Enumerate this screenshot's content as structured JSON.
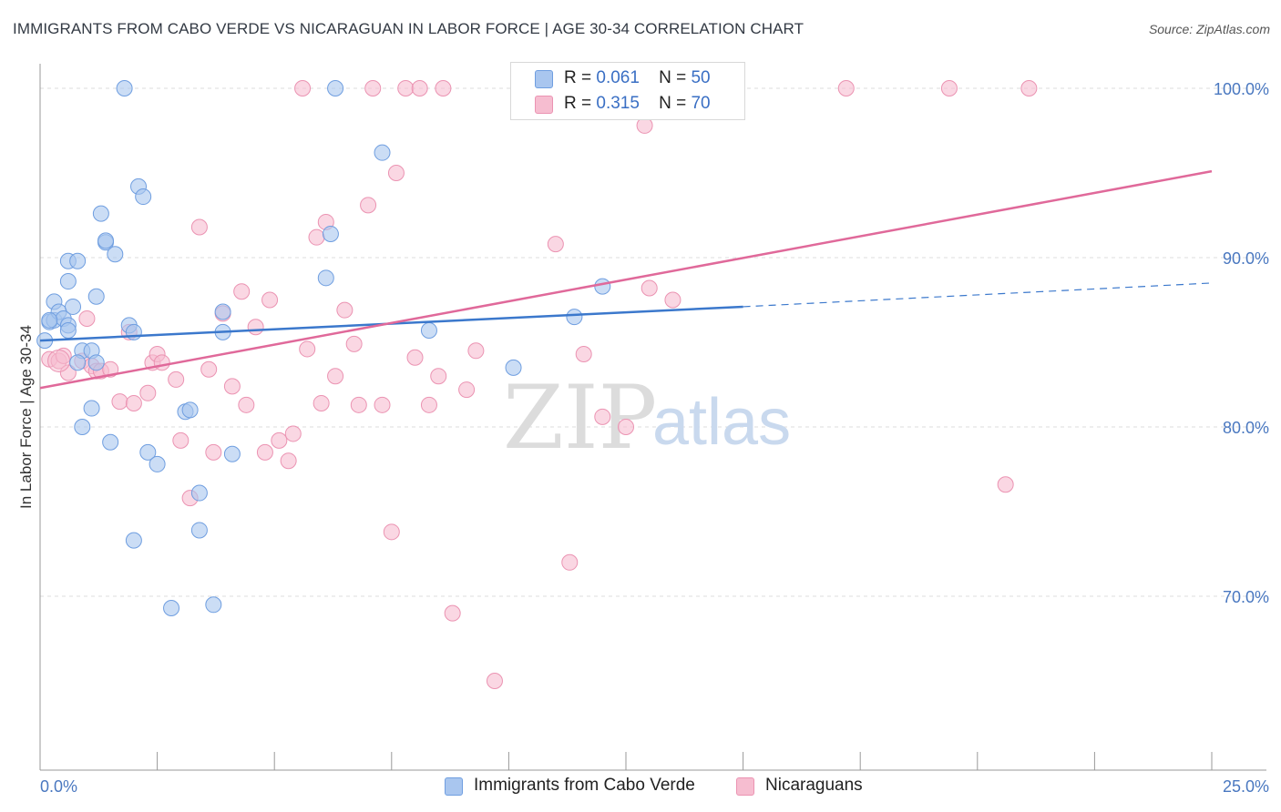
{
  "title": "IMMIGRANTS FROM CABO VERDE VS NICARAGUAN IN LABOR FORCE | AGE 30-34 CORRELATION CHART",
  "source": "Source: ZipAtlas.com",
  "watermark": {
    "zip": "ZIP",
    "atlas": "atlas"
  },
  "legend": {
    "r_label": "R =",
    "n_label": "N =",
    "rows": [
      {
        "r": "0.061",
        "n": "50"
      },
      {
        "r": "0.315",
        "n": "70"
      }
    ]
  },
  "chart_data": {
    "type": "scatter",
    "title": "IMMIGRANTS FROM CABO VERDE VS NICARAGUAN IN LABOR FORCE | AGE 30-34 CORRELATION CHART",
    "xlabel": "",
    "ylabel": "In Labor Force | Age 30-34",
    "xlim": [
      0,
      25
    ],
    "ylim": [
      60,
      101.5
    ],
    "x_tick_labels": [
      {
        "value": 0,
        "label": "0.0%"
      },
      {
        "value": 25,
        "label": "25.0%"
      }
    ],
    "y_tick_labels": [
      {
        "value": 100,
        "label": "100.0%"
      },
      {
        "value": 90,
        "label": "90.0%"
      },
      {
        "value": 80,
        "label": "80.0%"
      },
      {
        "value": 70,
        "label": "70.0%"
      }
    ],
    "colors": {
      "blue_fill": "#a9c6ef",
      "blue_stroke": "#6f9ee0",
      "blue_line": "#3b78cc",
      "pink_fill": "#f6bdd0",
      "pink_stroke": "#eb93b2",
      "pink_line": "#e0699a",
      "axis_label": "#4a78c0"
    },
    "series": [
      {
        "name": "Immigrants from Cabo Verde",
        "R": 0.061,
        "N": 50,
        "trend": {
          "x0": 0,
          "y0": 85.1,
          "x1": 15,
          "y1": 87.1,
          "dash_to_x": 25,
          "dash_to_y": 88.5
        },
        "points": [
          [
            0.1,
            85.1
          ],
          [
            0.2,
            86.2
          ],
          [
            0.3,
            86.3
          ],
          [
            0.3,
            87.4
          ],
          [
            0.4,
            86.8
          ],
          [
            0.5,
            86.4
          ],
          [
            0.6,
            86.0
          ],
          [
            0.6,
            85.7
          ],
          [
            0.6,
            88.6
          ],
          [
            0.6,
            89.8
          ],
          [
            0.8,
            89.8
          ],
          [
            0.7,
            87.1
          ],
          [
            0.9,
            84.5
          ],
          [
            0.8,
            83.8
          ],
          [
            0.9,
            80.0
          ],
          [
            1.1,
            84.5
          ],
          [
            1.1,
            81.1
          ],
          [
            1.2,
            87.7
          ],
          [
            1.2,
            83.8
          ],
          [
            1.3,
            92.6
          ],
          [
            1.4,
            90.9
          ],
          [
            1.4,
            91.0
          ],
          [
            1.5,
            79.1
          ],
          [
            1.6,
            90.2
          ],
          [
            1.8,
            100.0
          ],
          [
            1.9,
            86.0
          ],
          [
            2.0,
            85.6
          ],
          [
            2.0,
            73.3
          ],
          [
            2.1,
            94.2
          ],
          [
            2.2,
            93.6
          ],
          [
            2.3,
            78.5
          ],
          [
            2.5,
            77.8
          ],
          [
            2.8,
            69.3
          ],
          [
            3.1,
            80.9
          ],
          [
            3.2,
            81.0
          ],
          [
            3.4,
            76.1
          ],
          [
            3.4,
            73.9
          ],
          [
            3.7,
            69.5
          ],
          [
            3.9,
            85.6
          ],
          [
            3.9,
            86.8
          ],
          [
            4.1,
            78.4
          ],
          [
            6.3,
            100.0
          ],
          [
            6.2,
            91.4
          ],
          [
            6.1,
            88.8
          ],
          [
            7.3,
            96.2
          ],
          [
            8.3,
            85.7
          ],
          [
            10.1,
            83.5
          ],
          [
            11.4,
            86.5
          ],
          [
            12.0,
            88.3
          ],
          [
            0.2,
            86.3
          ]
        ]
      },
      {
        "name": "Nicaraguans",
        "R": 0.315,
        "N": 70,
        "trend": {
          "x0": 0,
          "y0": 82.3,
          "x1": 25,
          "y1": 95.1
        },
        "points": [
          [
            0.2,
            84.0
          ],
          [
            0.4,
            83.9
          ],
          [
            0.5,
            84.2
          ],
          [
            0.6,
            83.2
          ],
          [
            0.9,
            83.9
          ],
          [
            1.0,
            86.4
          ],
          [
            1.1,
            83.6
          ],
          [
            1.2,
            83.3
          ],
          [
            1.3,
            83.3
          ],
          [
            1.5,
            83.4
          ],
          [
            1.7,
            81.5
          ],
          [
            1.9,
            85.6
          ],
          [
            2.0,
            81.4
          ],
          [
            2.3,
            82.0
          ],
          [
            2.4,
            83.8
          ],
          [
            2.5,
            84.3
          ],
          [
            2.6,
            83.8
          ],
          [
            2.9,
            82.8
          ],
          [
            3.0,
            79.2
          ],
          [
            3.2,
            75.8
          ],
          [
            3.4,
            91.8
          ],
          [
            3.6,
            83.4
          ],
          [
            3.7,
            78.5
          ],
          [
            3.9,
            86.7
          ],
          [
            4.1,
            82.4
          ],
          [
            4.3,
            88.0
          ],
          [
            4.4,
            81.3
          ],
          [
            4.6,
            85.9
          ],
          [
            4.8,
            78.5
          ],
          [
            4.9,
            87.5
          ],
          [
            5.1,
            79.2
          ],
          [
            5.3,
            78.0
          ],
          [
            5.4,
            79.6
          ],
          [
            5.6,
            100.0
          ],
          [
            5.7,
            84.6
          ],
          [
            5.9,
            91.2
          ],
          [
            6.0,
            81.4
          ],
          [
            6.1,
            92.1
          ],
          [
            6.3,
            83.0
          ],
          [
            6.5,
            86.9
          ],
          [
            6.7,
            84.9
          ],
          [
            6.8,
            81.3
          ],
          [
            7.0,
            93.1
          ],
          [
            7.1,
            100.0
          ],
          [
            7.3,
            81.3
          ],
          [
            7.5,
            73.8
          ],
          [
            7.6,
            95.0
          ],
          [
            7.8,
            100.0
          ],
          [
            8.0,
            84.1
          ],
          [
            8.1,
            100.0
          ],
          [
            8.3,
            81.3
          ],
          [
            8.6,
            100.0
          ],
          [
            8.5,
            83.0
          ],
          [
            8.8,
            69.0
          ],
          [
            9.1,
            82.2
          ],
          [
            9.3,
            84.5
          ],
          [
            9.7,
            65.0
          ],
          [
            10.3,
            99.0
          ],
          [
            11.0,
            90.8
          ],
          [
            11.3,
            72.0
          ],
          [
            11.6,
            84.3
          ],
          [
            12.0,
            80.6
          ],
          [
            12.5,
            80.0
          ],
          [
            12.9,
            97.8
          ],
          [
            13.0,
            88.2
          ],
          [
            13.5,
            87.5
          ],
          [
            17.2,
            100.0
          ],
          [
            19.4,
            100.0
          ],
          [
            21.1,
            100.0
          ],
          [
            20.6,
            76.6
          ]
        ]
      }
    ]
  },
  "bottom_legend": [
    {
      "label": "Immigrants from Cabo Verde"
    },
    {
      "label": "Nicaraguans"
    }
  ]
}
